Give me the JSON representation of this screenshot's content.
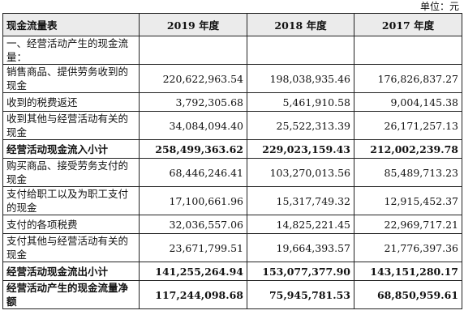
{
  "unit_label": "单位：元",
  "table": {
    "headers": [
      "现金流量表",
      "2019 年度",
      "2018 年度",
      "2017 年度"
    ],
    "rows": [
      {
        "label": "一、经营活动产生的现金流量：",
        "v2019": "",
        "v2018": "",
        "v2017": ""
      },
      {
        "label": "销售商品、提供劳务收到的现金",
        "v2019": "220,622,963.54",
        "v2018": "198,038,935.46",
        "v2017": "176,826,837.27"
      },
      {
        "label": "收到的税费返还",
        "v2019": "3,792,305.68",
        "v2018": "5,461,910.58",
        "v2017": "9,004,145.38"
      },
      {
        "label": "收到其他与经营活动有关的现金",
        "v2019": "34,084,094.40",
        "v2018": "25,522,313.39",
        "v2017": "26,171,257.13"
      },
      {
        "label": "经营活动现金流入小计",
        "v2019": "258,499,363.62",
        "v2018": "229,023,159.43",
        "v2017": "212,002,239.78"
      },
      {
        "label": "购买商品、接受劳务支付的现金",
        "v2019": "68,446,246.41",
        "v2018": "103,270,013.56",
        "v2017": "85,489,713.23"
      },
      {
        "label": "支付给职工以及为职工支付的现金",
        "v2019": "17,100,661.96",
        "v2018": "15,317,749.32",
        "v2017": "12,915,452.37"
      },
      {
        "label": "支付的各项税费",
        "v2019": "32,036,557.06",
        "v2018": "14,825,221.45",
        "v2017": "22,969,717.21"
      },
      {
        "label": "支付其他与经营活动有关的现金",
        "v2019": "23,671,799.51",
        "v2018": "19,664,393.57",
        "v2017": "21,776,397.36"
      },
      {
        "label": "经营活动现金流出小计",
        "v2019": "141,255,264.94",
        "v2018": "153,077,377.90",
        "v2017": "143,151,280.17"
      },
      {
        "label": "经营活动产生的现金流量净额",
        "v2019": "117,244,098.68",
        "v2018": "75,945,781.53",
        "v2017": "68,850,959.61"
      }
    ]
  }
}
